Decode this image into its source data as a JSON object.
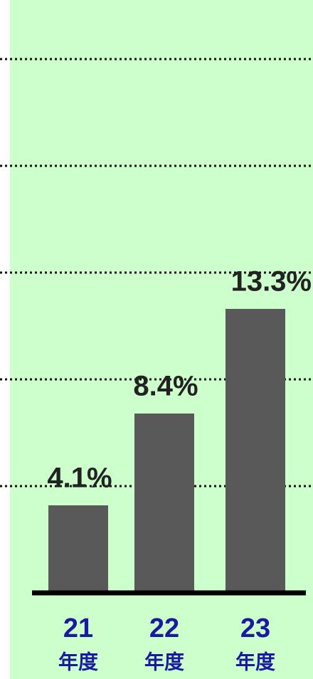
{
  "chart_data": {
    "type": "bar",
    "categories": [
      "21",
      "22",
      "23"
    ],
    "category_unit": "年度",
    "values": [
      4.1,
      8.4,
      13.3
    ],
    "value_labels": [
      "4.1%",
      "8.4%",
      "13.3%"
    ],
    "color": "#595959",
    "ylim": [
      0,
      27.8
    ],
    "yticks": [
      5,
      10,
      15,
      20,
      25
    ],
    "grid": true
  }
}
